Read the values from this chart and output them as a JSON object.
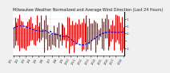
{
  "title": "Milwaukee Weather Normalized and Average Wind Direction (Last 24 Hours)",
  "background_color": "#f0f0f0",
  "plot_bg_color": "#ffffff",
  "bar_color": "#dd0000",
  "line_color": "#0000cc",
  "ylim": [
    -1.5,
    1.5
  ],
  "yticks": [
    1.0,
    0.5,
    0.0,
    -0.5,
    -1.0
  ],
  "ytick_labels": [
    "1",
    ".5",
    "0",
    ".",
    "-1"
  ],
  "grid_color": "#aaaaaa",
  "title_fontsize": 3.5,
  "tick_fontsize": 2.8,
  "n_points": 72,
  "vline_positions": [
    24,
    48
  ]
}
